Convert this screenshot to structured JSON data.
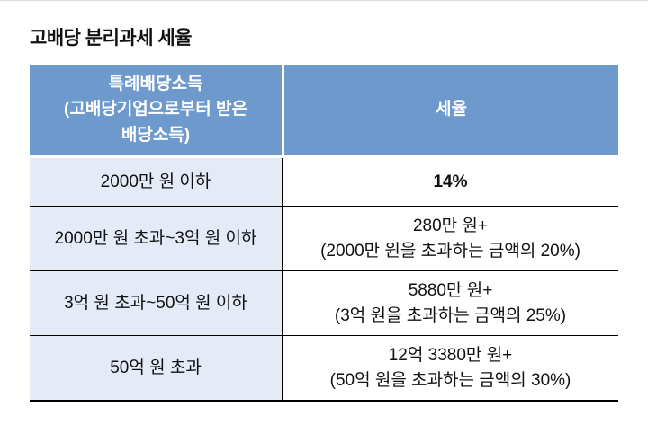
{
  "page": {
    "title": "고배당 분리과세 세율"
  },
  "table": {
    "header": {
      "income_col": "특례배당소득\n(고배당기업으로부터 받은\n배당소득)",
      "rate_col": "세율"
    },
    "rows": [
      {
        "range": "2000만 원 이하",
        "rate": "14%"
      },
      {
        "range": "2000만 원 초과~3억 원 이하",
        "rate": "280만 원+\n(2000만 원을 초과하는 금액의 20%)"
      },
      {
        "range": "3억 원 초과~50억 원 이하",
        "rate": "5880만 원+\n(3억 원을 초과하는 금액의 25%)"
      },
      {
        "range": "50억 원 초과",
        "rate": "12억 3380만 원+\n(50억 원을 초과하는 금액의 30%)"
      }
    ],
    "colors": {
      "header_bg": "#6E99CD",
      "header_text": "#FFFFFF",
      "range_cell_bg": "#E4EAF6",
      "border": "#000000"
    }
  }
}
